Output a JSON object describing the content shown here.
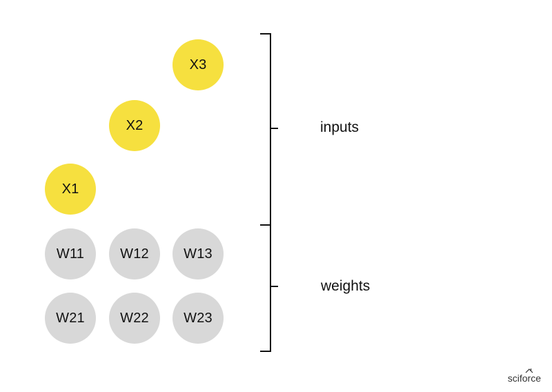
{
  "diagram": {
    "inputs": [
      {
        "label": "X1"
      },
      {
        "label": "X2"
      },
      {
        "label": "X3"
      }
    ],
    "weights": [
      {
        "label": "W11"
      },
      {
        "label": "W12"
      },
      {
        "label": "W13"
      },
      {
        "label": "W21"
      },
      {
        "label": "W22"
      },
      {
        "label": "W23"
      }
    ],
    "groups": {
      "inputs_label": "inputs",
      "weights_label": "weights"
    },
    "brand": "sciforce",
    "colors": {
      "input_fill": "#f6e03f",
      "weight_fill": "#d8d8d8",
      "text": "#111111"
    }
  }
}
